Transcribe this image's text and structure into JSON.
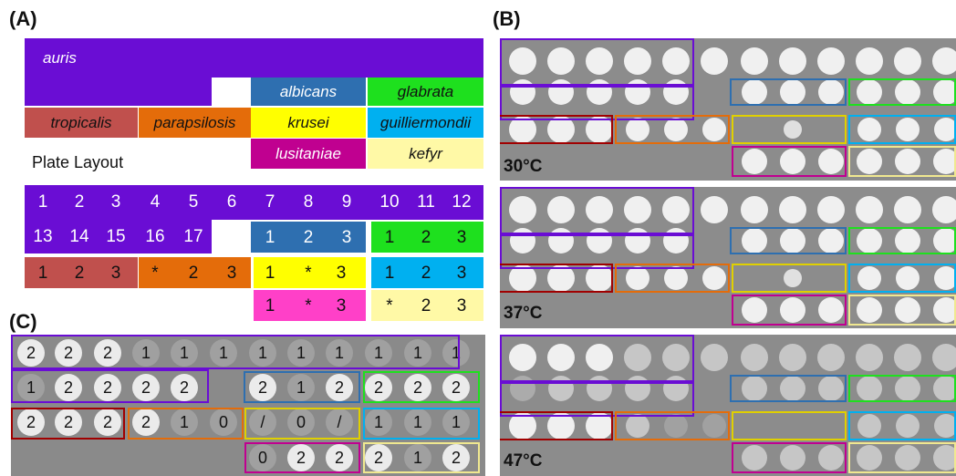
{
  "labels": {
    "a": "(A)",
    "b": "(B)",
    "c": "(C)"
  },
  "layout": {
    "species": {
      "auris": "auris",
      "albicans": "albicans",
      "glabrata": "glabrata",
      "tropicalis": "tropicalis",
      "parapsilosis": "parapsilosis",
      "krusei": "krusei",
      "guilliermondii": "guilliermondii",
      "lusitaniae": "lusitaniae",
      "kefyr": "kefyr"
    },
    "plate_layout_label": "Plate Layout",
    "colors": {
      "auris": "#6a0dd4",
      "albicans": "#2e6fb0",
      "glabrata": "#1ee01e",
      "tropicalis": "#c0504d",
      "parapsilosis": "#e46c0a",
      "krusei": "#ffff00",
      "guilliermondii": "#00b0f0",
      "lusitaniae": "#c00090",
      "kefyr": "#fff9a6",
      "lusitaniae_numbers": "#ff40c8"
    }
  },
  "numbers": {
    "row1": [
      "1",
      "2",
      "3",
      "4",
      "5",
      "6",
      "7",
      "8",
      "9",
      "10",
      "11",
      "12"
    ],
    "row2_auris": [
      "13",
      "14",
      "15",
      "16",
      "17"
    ],
    "albicans": [
      "1",
      "2",
      "3"
    ],
    "glabrata": [
      "1",
      "2",
      "3"
    ],
    "tropicalis": [
      "1",
      "2",
      "3"
    ],
    "parapsilosis": [
      "*",
      "2",
      "3"
    ],
    "krusei": [
      "1",
      "*",
      "3"
    ],
    "guilliermondii": [
      "1",
      "2",
      "3"
    ],
    "lusitaniae": [
      "1",
      "*",
      "3"
    ],
    "kefyr": [
      "*",
      "2",
      "3"
    ]
  },
  "temperatures": [
    "30°C",
    "37°C",
    "47°C"
  ],
  "scores": {
    "row1": [
      "2",
      "2",
      "2",
      "1",
      "1",
      "1",
      "1",
      "1",
      "1",
      "1",
      "1",
      "1"
    ],
    "row2": [
      "1",
      "2",
      "2",
      "2",
      "2",
      "",
      "2",
      "1",
      "2",
      "2",
      "2",
      "2"
    ],
    "row3": [
      "2",
      "2",
      "2",
      "2",
      "1",
      "0",
      "/",
      "0",
      "/",
      "1",
      "1",
      "1"
    ],
    "row4": [
      "",
      "",
      "",
      "",
      "",
      "",
      "0",
      "2",
      "2",
      "2",
      "1",
      "2"
    ]
  }
}
